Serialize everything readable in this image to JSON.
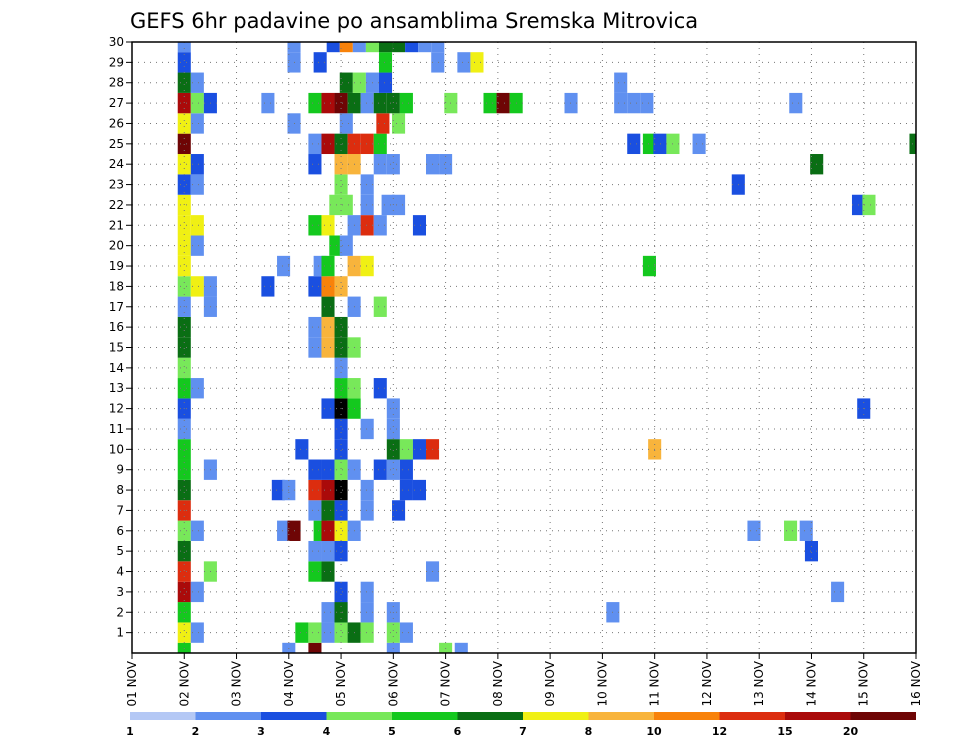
{
  "chart_data": {
    "type": "heatmap",
    "title": "GEFS 6hr padavine po ansamblima Sremska Mitrovica",
    "xlabel": "",
    "ylabel": "",
    "x_ticks": [
      "01 NOV",
      "02 NOV",
      "03 NOV",
      "04 NOV",
      "05 NOV",
      "06 NOV",
      "07 NOV",
      "08 NOV",
      "09 NOV",
      "10 NOV",
      "11 NOV",
      "12 NOV",
      "13 NOV",
      "14 NOV",
      "15 NOV",
      "16 NOV"
    ],
    "xlim_days": [
      1,
      16
    ],
    "y_ticks": [
      "1",
      "2",
      "3",
      "4",
      "5",
      "6",
      "7",
      "8",
      "9",
      "10",
      "11",
      "12",
      "13",
      "14",
      "15",
      "16",
      "17",
      "18",
      "19",
      "20",
      "21",
      "22",
      "23",
      "24",
      "25",
      "26",
      "27",
      "28",
      "29",
      "30"
    ],
    "ylim": [
      0,
      30
    ],
    "grid": true,
    "legend": {
      "placement": "bottom",
      "labels": [
        "1",
        "2",
        "3",
        "4",
        "5",
        "6",
        "7",
        "8",
        "10",
        "12",
        "15",
        "20"
      ],
      "colors": [
        "#b4c8f5",
        "#6090f0",
        "#1a4fe0",
        "#78e85a",
        "#14c81e",
        "#0a6e14",
        "#f0f014",
        "#f8b43c",
        "#f8820a",
        "#dc2d0f",
        "#aa0a0a",
        "#6e0505"
      ]
    },
    "cells": [
      [
        2.0,
        0,
        4
      ],
      [
        4.0,
        0,
        1
      ],
      [
        4.5,
        0,
        11
      ],
      [
        6.0,
        0,
        1
      ],
      [
        7.0,
        0,
        3
      ],
      [
        7.3,
        0,
        1
      ],
      [
        2.0,
        1,
        6
      ],
      [
        2.25,
        1,
        1
      ],
      [
        4.25,
        1,
        4
      ],
      [
        4.5,
        1,
        3
      ],
      [
        4.75,
        1,
        1
      ],
      [
        5.0,
        1,
        3
      ],
      [
        5.25,
        1,
        5
      ],
      [
        5.5,
        1,
        3
      ],
      [
        6.0,
        1,
        3
      ],
      [
        6.25,
        1,
        1
      ],
      [
        2.0,
        2,
        4
      ],
      [
        4.75,
        2,
        1
      ],
      [
        5.0,
        2,
        2
      ],
      [
        5.0,
        2,
        5
      ],
      [
        5.5,
        2,
        1
      ],
      [
        6.0,
        2,
        1
      ],
      [
        10.2,
        2,
        1
      ],
      [
        2.0,
        3,
        10
      ],
      [
        2.25,
        3,
        1
      ],
      [
        5.0,
        3,
        2
      ],
      [
        5.5,
        3,
        1
      ],
      [
        14.5,
        3,
        1
      ],
      [
        2.0,
        4,
        9
      ],
      [
        2.5,
        4,
        3
      ],
      [
        4.5,
        4,
        4
      ],
      [
        4.75,
        4,
        5
      ],
      [
        6.75,
        4,
        1
      ],
      [
        2.0,
        5,
        5
      ],
      [
        4.5,
        5,
        1
      ],
      [
        4.75,
        5,
        1
      ],
      [
        5.0,
        5,
        2
      ],
      [
        2.0,
        6,
        3
      ],
      [
        2.25,
        6,
        1
      ],
      [
        3.9,
        6,
        1
      ],
      [
        4.1,
        6,
        11
      ],
      [
        4.6,
        6,
        4
      ],
      [
        4.75,
        6,
        10
      ],
      [
        5.0,
        6,
        6
      ],
      [
        5.25,
        6,
        1
      ],
      [
        12.9,
        6,
        1
      ],
      [
        13.6,
        6,
        3
      ],
      [
        13.9,
        6,
        1
      ],
      [
        14.0,
        5,
        2
      ],
      [
        2.0,
        7,
        9
      ],
      [
        4.5,
        7,
        1
      ],
      [
        4.75,
        7,
        5
      ],
      [
        5.0,
        7,
        2
      ],
      [
        5.5,
        7,
        1
      ],
      [
        6.1,
        7,
        2
      ],
      [
        2.0,
        8,
        5
      ],
      [
        3.8,
        8,
        2
      ],
      [
        4.0,
        8,
        1
      ],
      [
        4.5,
        8,
        9
      ],
      [
        4.75,
        8,
        10
      ],
      [
        5.0,
        8,
        12
      ],
      [
        5.5,
        8,
        1
      ],
      [
        6.25,
        8,
        2
      ],
      [
        6.5,
        8,
        2
      ],
      [
        2.0,
        9,
        4
      ],
      [
        2.5,
        9,
        1
      ],
      [
        4.5,
        9,
        2
      ],
      [
        4.75,
        9,
        2
      ],
      [
        5.0,
        9,
        3
      ],
      [
        5.25,
        9,
        1
      ],
      [
        5.75,
        9,
        2
      ],
      [
        6.0,
        9,
        1
      ],
      [
        6.25,
        9,
        2
      ],
      [
        2.0,
        10,
        4
      ],
      [
        4.25,
        10,
        2
      ],
      [
        5.0,
        10,
        2
      ],
      [
        6.0,
        10,
        5
      ],
      [
        6.25,
        10,
        3
      ],
      [
        6.5,
        10,
        2
      ],
      [
        6.75,
        10,
        9
      ],
      [
        11.0,
        10,
        7
      ],
      [
        2.0,
        11,
        1
      ],
      [
        5.0,
        11,
        2
      ],
      [
        5.5,
        11,
        1
      ],
      [
        6.0,
        11,
        1
      ],
      [
        2.0,
        12,
        2
      ],
      [
        4.75,
        12,
        2
      ],
      [
        5.0,
        12,
        12
      ],
      [
        5.25,
        12,
        4
      ],
      [
        6.0,
        12,
        1
      ],
      [
        15.0,
        12,
        2
      ],
      [
        2.0,
        13,
        4
      ],
      [
        2.25,
        13,
        1
      ],
      [
        5.0,
        13,
        4
      ],
      [
        5.25,
        13,
        3
      ],
      [
        5.75,
        13,
        2
      ],
      [
        2.0,
        14,
        3
      ],
      [
        5.0,
        14,
        1
      ],
      [
        2.0,
        15,
        5
      ],
      [
        4.5,
        15,
        1
      ],
      [
        4.75,
        15,
        7
      ],
      [
        5.0,
        15,
        5
      ],
      [
        5.25,
        15,
        3
      ],
      [
        2.0,
        16,
        5
      ],
      [
        4.5,
        16,
        1
      ],
      [
        4.75,
        16,
        7
      ],
      [
        5.0,
        16,
        5
      ],
      [
        2.0,
        17,
        1
      ],
      [
        2.5,
        17,
        1
      ],
      [
        4.75,
        17,
        5
      ],
      [
        5.25,
        17,
        1
      ],
      [
        5.75,
        17,
        3
      ],
      [
        2.0,
        18,
        3
      ],
      [
        2.25,
        18,
        6
      ],
      [
        2.5,
        18,
        1
      ],
      [
        3.6,
        18,
        2
      ],
      [
        4.5,
        18,
        2
      ],
      [
        4.75,
        18,
        8
      ],
      [
        5.0,
        18,
        7
      ],
      [
        2.0,
        19,
        6
      ],
      [
        3.9,
        19,
        1
      ],
      [
        4.6,
        19,
        1
      ],
      [
        4.75,
        19,
        4
      ],
      [
        5.25,
        19,
        7
      ],
      [
        5.5,
        19,
        6
      ],
      [
        10.9,
        19,
        4
      ],
      [
        2.0,
        20,
        6
      ],
      [
        2.25,
        20,
        1
      ],
      [
        4.9,
        20,
        4
      ],
      [
        5.1,
        20,
        1
      ],
      [
        2.0,
        21,
        6
      ],
      [
        2.25,
        21,
        6
      ],
      [
        4.5,
        21,
        4
      ],
      [
        4.75,
        21,
        6
      ],
      [
        5.25,
        21,
        1
      ],
      [
        5.5,
        21,
        9
      ],
      [
        5.75,
        21,
        1
      ],
      [
        6.5,
        21,
        2
      ],
      [
        2.0,
        22,
        6
      ],
      [
        4.9,
        22,
        3
      ],
      [
        5.1,
        22,
        3
      ],
      [
        5.5,
        22,
        1
      ],
      [
        5.9,
        22,
        1
      ],
      [
        6.1,
        22,
        1
      ],
      [
        14.9,
        22,
        2
      ],
      [
        15.1,
        22,
        3
      ],
      [
        2.0,
        23,
        2
      ],
      [
        2.25,
        23,
        1
      ],
      [
        5.0,
        23,
        3
      ],
      [
        5.5,
        23,
        1
      ],
      [
        12.6,
        23,
        2
      ],
      [
        2.0,
        24,
        6
      ],
      [
        2.25,
        24,
        2
      ],
      [
        4.5,
        24,
        2
      ],
      [
        5.0,
        24,
        7
      ],
      [
        5.25,
        24,
        7
      ],
      [
        5.75,
        24,
        1
      ],
      [
        6.0,
        24,
        1
      ],
      [
        6.75,
        24,
        1
      ],
      [
        7.0,
        24,
        1
      ],
      [
        14.1,
        24,
        5
      ],
      [
        2.0,
        25,
        11
      ],
      [
        4.5,
        25,
        1
      ],
      [
        4.75,
        25,
        10
      ],
      [
        5.0,
        25,
        5
      ],
      [
        5.25,
        25,
        9
      ],
      [
        5.5,
        25,
        9
      ],
      [
        5.75,
        25,
        4
      ],
      [
        10.6,
        25,
        2
      ],
      [
        10.9,
        25,
        4
      ],
      [
        11.1,
        25,
        2
      ],
      [
        11.35,
        25,
        3
      ],
      [
        11.85,
        25,
        1
      ],
      [
        16.0,
        25,
        5
      ],
      [
        2.0,
        26,
        6
      ],
      [
        2.25,
        26,
        1
      ],
      [
        4.1,
        26,
        1
      ],
      [
        5.1,
        26,
        1
      ],
      [
        5.8,
        26,
        9
      ],
      [
        6.1,
        26,
        3
      ],
      [
        2.0,
        27,
        10
      ],
      [
        2.25,
        27,
        3
      ],
      [
        2.5,
        27,
        2
      ],
      [
        3.6,
        27,
        1
      ],
      [
        4.5,
        27,
        4
      ],
      [
        4.75,
        27,
        10
      ],
      [
        5.0,
        27,
        11
      ],
      [
        5.25,
        27,
        5
      ],
      [
        5.5,
        27,
        1
      ],
      [
        5.75,
        27,
        5
      ],
      [
        6.0,
        27,
        5
      ],
      [
        6.25,
        27,
        4
      ],
      [
        7.1,
        27,
        3
      ],
      [
        7.85,
        27,
        4
      ],
      [
        8.1,
        27,
        11
      ],
      [
        8.35,
        27,
        4
      ],
      [
        9.4,
        27,
        1
      ],
      [
        10.35,
        27,
        1
      ],
      [
        10.6,
        27,
        1
      ],
      [
        10.85,
        27,
        1
      ],
      [
        13.7,
        27,
        1
      ],
      [
        2.0,
        28,
        5
      ],
      [
        2.25,
        28,
        1
      ],
      [
        5.1,
        28,
        5
      ],
      [
        5.35,
        28,
        3
      ],
      [
        5.6,
        28,
        1
      ],
      [
        5.85,
        28,
        2
      ],
      [
        10.35,
        28,
        1
      ],
      [
        2.0,
        29,
        2
      ],
      [
        4.1,
        29,
        1
      ],
      [
        4.6,
        29,
        2
      ],
      [
        5.85,
        29,
        4
      ],
      [
        6.85,
        29,
        1
      ],
      [
        7.35,
        29,
        1
      ],
      [
        7.6,
        29,
        6
      ],
      [
        2.0,
        30,
        1
      ],
      [
        4.1,
        30,
        1
      ],
      [
        4.85,
        30,
        2
      ],
      [
        5.1,
        30,
        8
      ],
      [
        5.35,
        30,
        1
      ],
      [
        5.6,
        30,
        3
      ],
      [
        5.85,
        30,
        5
      ],
      [
        6.1,
        30,
        5
      ],
      [
        6.35,
        30,
        2
      ],
      [
        6.6,
        30,
        1
      ],
      [
        6.85,
        30,
        1
      ]
    ]
  }
}
